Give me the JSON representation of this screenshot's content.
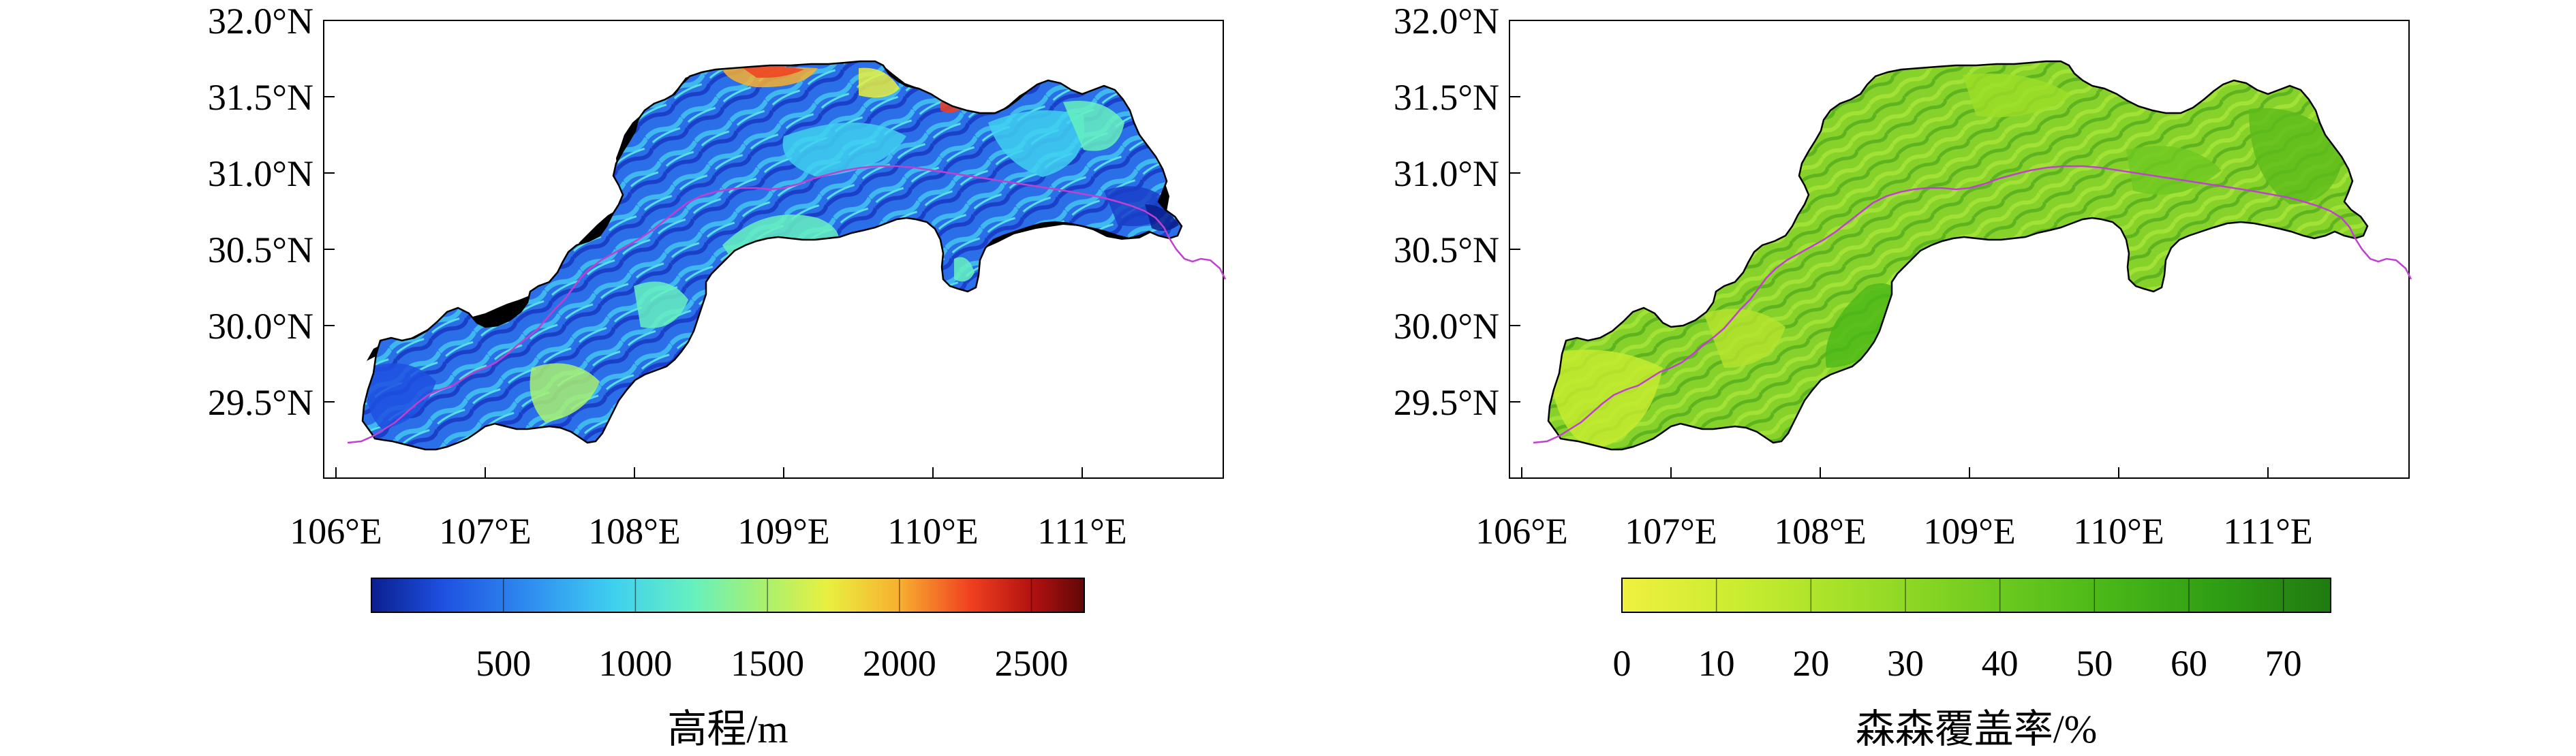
{
  "maps": [
    {
      "id": "elevation",
      "lat_ticks": [
        "32.0°N",
        "31.5°N",
        "31.0°N",
        "30.5°N",
        "30.0°N",
        "29.5°N"
      ],
      "lon_ticks": [
        "106°E",
        "107°E",
        "108°E",
        "109°E",
        "110°E",
        "111°E"
      ],
      "colorbar": {
        "ticks": [
          "500",
          "1000",
          "1500",
          "2000",
          "2500"
        ],
        "tick_values": [
          500,
          1000,
          1500,
          2000,
          2500
        ],
        "min": 0,
        "max": 2700,
        "label": "高程/m",
        "colors": [
          "#0a1f8f",
          "#1e50e0",
          "#2f8cf0",
          "#3fd0f0",
          "#66f0c0",
          "#a8f070",
          "#e8f040",
          "#f8b030",
          "#f04020",
          "#b01010",
          "#600808"
        ]
      }
    },
    {
      "id": "forest",
      "lat_ticks": [
        "32.0°N",
        "31.5°N",
        "31.0°N",
        "30.5°N",
        "30.0°N",
        "29.5°N"
      ],
      "lon_ticks": [
        "106°E",
        "107°E",
        "108°E",
        "109°E",
        "110°E",
        "111°E"
      ],
      "colorbar": {
        "ticks": [
          "0",
          "10",
          "20",
          "30",
          "40",
          "50",
          "60",
          "70"
        ],
        "tick_values": [
          0,
          10,
          20,
          30,
          40,
          50,
          60,
          70
        ],
        "min": 0,
        "max": 75,
        "label": "森森覆盖率/%",
        "colors": [
          "#f0f040",
          "#c8ec30",
          "#9ede28",
          "#72cc20",
          "#4ab818",
          "#2e9c14",
          "#207a10"
        ]
      }
    }
  ],
  "colors": {
    "region_outline": "#000000",
    "river": "#c040d0"
  }
}
